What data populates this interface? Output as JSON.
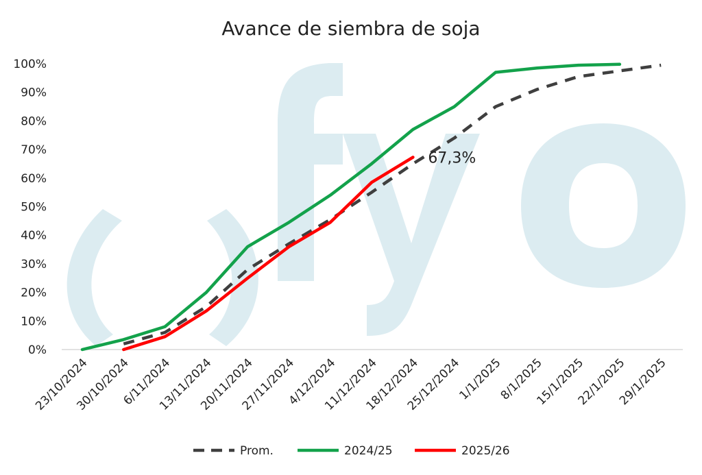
{
  "chart_data": {
    "type": "line",
    "title": "Avance de siembra de soja",
    "xlabel": "",
    "ylabel": "",
    "categories": [
      "23/10/2024",
      "30/10/2024",
      "6/11/2024",
      "13/11/2024",
      "20/11/2024",
      "27/11/2024",
      "4/12/2024",
      "11/12/2024",
      "18/12/2024",
      "25/12/2024",
      "1/1/2025",
      "8/1/2025",
      "15/1/2025",
      "22/1/2025",
      "29/1/2025"
    ],
    "y_ticks": [
      "0%",
      "10%",
      "20%",
      "30%",
      "40%",
      "50%",
      "60%",
      "70%",
      "80%",
      "90%",
      "100%"
    ],
    "ylim": [
      0,
      100
    ],
    "grid": false,
    "legend_position": "bottom",
    "series": [
      {
        "name": "Prom.",
        "color": "#3f3f3f",
        "style": "dashed",
        "values": [
          null,
          2,
          6,
          15,
          28,
          37,
          45.5,
          55,
          65,
          74,
          85,
          91,
          95.5,
          97.5,
          99.5
        ]
      },
      {
        "name": "2024/25",
        "color": "#13a24b",
        "style": "solid",
        "values": [
          0,
          3.5,
          8,
          20,
          36,
          44.5,
          54,
          65,
          77,
          85,
          97,
          98.5,
          99.5,
          99.8,
          null
        ]
      },
      {
        "name": "2025/26",
        "color": "#ff0000",
        "style": "solid",
        "values": [
          null,
          0,
          4.5,
          13.5,
          25,
          36,
          44.5,
          58.5,
          67.3,
          null,
          null,
          null,
          null,
          null,
          null
        ]
      }
    ],
    "annotations": [
      {
        "text": "67,3%",
        "category": "18/12/2024",
        "value": 67.3
      }
    ]
  },
  "watermark": "ofyo"
}
